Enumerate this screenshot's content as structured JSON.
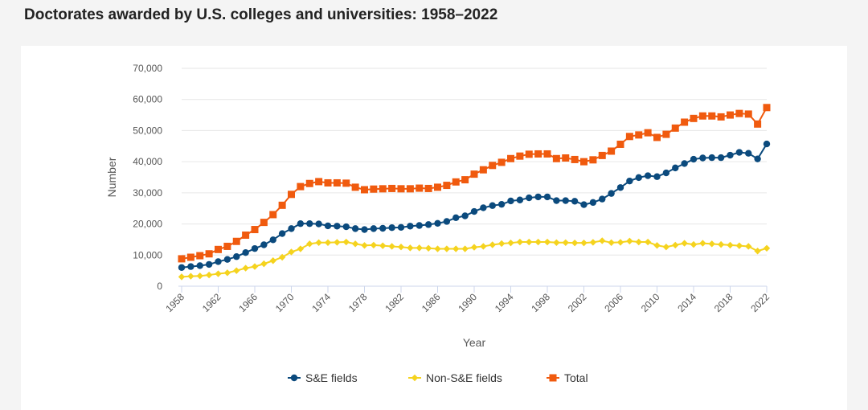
{
  "page": {
    "title": "Doctorates awarded by U.S. colleges and universities: 1958–2022"
  },
  "chart_data": {
    "type": "line",
    "title": "Doctorates awarded by U.S. colleges and universities: 1958–2022",
    "xlabel": "Year",
    "ylabel": "Number",
    "ylim": [
      0,
      70000
    ],
    "yticks": [
      0,
      10000,
      20000,
      30000,
      40000,
      50000,
      60000,
      70000
    ],
    "ytick_labels": [
      "0",
      "10,000",
      "20,000",
      "30,000",
      "40,000",
      "50,000",
      "60,000",
      "70,000"
    ],
    "xlim": [
      1958,
      2022
    ],
    "xticks": [
      1958,
      1962,
      1966,
      1970,
      1974,
      1978,
      1982,
      1986,
      1990,
      1994,
      1998,
      2002,
      2006,
      2010,
      2014,
      2018,
      2022
    ],
    "xtick_labels": [
      "1958",
      "1962",
      "1966",
      "1970",
      "1974",
      "1978",
      "1982",
      "1986",
      "1990",
      "1994",
      "1998",
      "2002",
      "2006",
      "2010",
      "2014",
      "2018",
      "2022"
    ],
    "grid": "horizontal",
    "legend_position": "bottom",
    "x": [
      1958,
      1959,
      1960,
      1961,
      1962,
      1963,
      1964,
      1965,
      1966,
      1967,
      1968,
      1969,
      1970,
      1971,
      1972,
      1973,
      1974,
      1975,
      1976,
      1977,
      1978,
      1979,
      1980,
      1981,
      1982,
      1983,
      1984,
      1985,
      1986,
      1987,
      1988,
      1989,
      1990,
      1991,
      1992,
      1993,
      1994,
      1995,
      1996,
      1997,
      1998,
      1999,
      2000,
      2001,
      2002,
      2003,
      2004,
      2005,
      2006,
      2007,
      2008,
      2009,
      2010,
      2011,
      2012,
      2013,
      2014,
      2015,
      2016,
      2017,
      2018,
      2019,
      2020,
      2021,
      2022
    ],
    "series": [
      {
        "name": "S&E fields",
        "color": "#0b4a7d",
        "marker": "circle",
        "values": [
          6000,
          6300,
          6600,
          7000,
          7900,
          8600,
          9500,
          10800,
          12100,
          13300,
          14900,
          16900,
          18500,
          20100,
          20100,
          20000,
          19400,
          19300,
          19100,
          18500,
          18200,
          18500,
          18600,
          18800,
          18900,
          19300,
          19500,
          19800,
          20200,
          20800,
          22000,
          22600,
          24000,
          25200,
          25900,
          26300,
          27400,
          27700,
          28400,
          28700,
          28700,
          27500,
          27500,
          27300,
          26200,
          26900,
          28000,
          29800,
          31700,
          33800,
          34900,
          35500,
          35200,
          36400,
          38000,
          39400,
          40800,
          41200,
          41300,
          41300,
          42100,
          43000,
          42700,
          40900,
          45700
        ]
      },
      {
        "name": "Non-S&E fields",
        "color": "#f5d31e",
        "marker": "diamond",
        "values": [
          3000,
          3200,
          3300,
          3600,
          4000,
          4300,
          5000,
          5800,
          6300,
          7200,
          8200,
          9300,
          11000,
          12000,
          13600,
          14000,
          14000,
          14100,
          14200,
          13600,
          13100,
          13200,
          13000,
          12800,
          12600,
          12300,
          12300,
          12200,
          12000,
          12000,
          12000,
          12000,
          12500,
          12800,
          13300,
          13700,
          13900,
          14200,
          14200,
          14200,
          14200,
          14000,
          14000,
          13900,
          13900,
          14100,
          14600,
          14000,
          14100,
          14500,
          14200,
          14200,
          13100,
          12600,
          13200,
          13800,
          13400,
          13800,
          13600,
          13400,
          13200,
          13000,
          12800,
          11300,
          12200
        ]
      },
      {
        "name": "Total",
        "color": "#f05a0e",
        "marker": "square",
        "values": [
          8800,
          9300,
          9800,
          10400,
          11800,
          12800,
          14400,
          16400,
          18200,
          20500,
          23000,
          26000,
          29500,
          32000,
          33000,
          33600,
          33200,
          33200,
          33100,
          31800,
          31000,
          31200,
          31300,
          31400,
          31300,
          31300,
          31500,
          31400,
          31800,
          32400,
          33500,
          34200,
          36000,
          37400,
          38800,
          39800,
          41000,
          41800,
          42400,
          42500,
          42500,
          41000,
          41200,
          40700,
          40000,
          40600,
          42000,
          43400,
          45600,
          48100,
          48600,
          49300,
          47800,
          48800,
          50800,
          52700,
          53900,
          54700,
          54700,
          54400,
          55000,
          55500,
          55300,
          52100,
          57400
        ]
      }
    ]
  }
}
